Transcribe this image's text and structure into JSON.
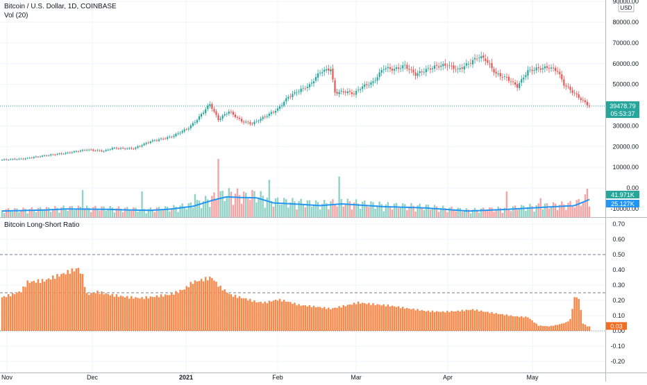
{
  "header": {
    "symbol_title": "Bitcoin / U.S. Dollar, 1D, COINBASE",
    "volume_label": "Vol (20)",
    "currency": "USD",
    "indicator_title": "Bitcoin Long-Short Ratio"
  },
  "badges": {
    "last_price": "39478.79",
    "countdown": "05:53:37",
    "volume_last": "41.971K",
    "volume_ma": "25.127K",
    "ratio_last": "0.03"
  },
  "colors": {
    "up": "#26a69a",
    "down": "#ef5350",
    "vol_up": "#8fd2c6",
    "vol_down": "#f4a4a4",
    "vol_ma": "#2196f3",
    "ratio_bar": "#f7894a",
    "ratio_badge": "#f26d21",
    "price_badge": "#26a69a",
    "ma_badge": "#2196f3",
    "grid": "#f0f3fa",
    "axis_text": "#131722"
  },
  "chart_data": [
    {
      "type": "candlestick",
      "title": "Bitcoin / U.S. Dollar, 1D, COINBASE",
      "x_axis_labels": [
        "Nov",
        "Dec",
        "2021",
        "Feb",
        "Mar",
        "Apr",
        "May"
      ],
      "y_ticks": [
        "-10000.00",
        "0.00",
        "10000.00",
        "20000.00",
        "30000.00",
        "40000.00",
        "50000.00",
        "60000.00",
        "70000.00",
        "80000.00",
        "90000.00"
      ],
      "ylim": [
        -10000,
        92000
      ],
      "last_price": 39478.79,
      "close_path": [
        [
          0,
          13600
        ],
        [
          10,
          14100
        ],
        [
          20,
          15600
        ],
        [
          30,
          16800
        ],
        [
          40,
          18500
        ],
        [
          48,
          17800
        ],
        [
          52,
          19200
        ],
        [
          62,
          19000
        ],
        [
          70,
          22500
        ],
        [
          80,
          24800
        ],
        [
          88,
          29000
        ],
        [
          92,
          33000
        ],
        [
          98,
          40500
        ],
        [
          102,
          33000
        ],
        [
          107,
          37000
        ],
        [
          113,
          32200
        ],
        [
          118,
          31000
        ],
        [
          124,
          34500
        ],
        [
          130,
          38000
        ],
        [
          135,
          44000
        ],
        [
          140,
          47000
        ],
        [
          145,
          49500
        ],
        [
          150,
          56000
        ],
        [
          155,
          57500
        ],
        [
          157,
          46000
        ],
        [
          162,
          46500
        ],
        [
          166,
          45500
        ],
        [
          170,
          49000
        ],
        [
          175,
          51000
        ],
        [
          180,
          58000
        ],
        [
          185,
          57200
        ],
        [
          190,
          59000
        ],
        [
          195,
          54800
        ],
        [
          200,
          57000
        ],
        [
          205,
          58800
        ],
        [
          210,
          59300
        ],
        [
          215,
          57000
        ],
        [
          220,
          60000
        ],
        [
          225,
          63500
        ],
        [
          228,
          62000
        ],
        [
          233,
          55000
        ],
        [
          238,
          53000
        ],
        [
          243,
          49000
        ],
        [
          248,
          56500
        ],
        [
          252,
          57500
        ],
        [
          258,
          58200
        ],
        [
          262,
          56500
        ],
        [
          265,
          50000
        ],
        [
          270,
          45500
        ],
        [
          274,
          42000
        ],
        [
          277,
          39500
        ]
      ]
    },
    {
      "type": "bar",
      "title": "Vol (20)",
      "ylim": [
        -16000,
        150000
      ],
      "baseline": [
        [
          0,
          9000
        ],
        [
          20,
          10500
        ],
        [
          30,
          12000
        ],
        [
          50,
          11500
        ],
        [
          60,
          10500
        ],
        [
          70,
          10000
        ],
        [
          80,
          12000
        ],
        [
          90,
          16000
        ],
        [
          100,
          25500
        ],
        [
          106,
          30000
        ],
        [
          112,
          29000
        ],
        [
          120,
          28500
        ],
        [
          128,
          21000
        ],
        [
          140,
          19000
        ],
        [
          150,
          17000
        ],
        [
          160,
          19500
        ],
        [
          170,
          17500
        ],
        [
          180,
          15500
        ],
        [
          200,
          13500
        ],
        [
          220,
          9000
        ],
        [
          235,
          11000
        ],
        [
          255,
          14500
        ],
        [
          270,
          17000
        ],
        [
          277,
          26000
        ]
      ],
      "spikes": [
        [
          102,
          86000
        ],
        [
          126,
          55000
        ],
        [
          159,
          60000
        ],
        [
          254,
          28000
        ],
        [
          276,
          42000
        ],
        [
          66,
          38000
        ],
        [
          38,
          40000
        ],
        [
          91,
          34000
        ],
        [
          115,
          36000
        ],
        [
          238,
          38000
        ]
      ],
      "last_volume": 41971,
      "moving_average_last": 25127
    },
    {
      "type": "bar",
      "title": "Bitcoin Long-Short Ratio",
      "y_ticks": [
        "-0.20",
        "-0.10",
        "0.00",
        "0.10",
        "0.20",
        "0.30",
        "0.40",
        "0.50",
        "0.60",
        "0.70"
      ],
      "ylim": [
        -0.22,
        0.73
      ],
      "reference_lines": [
        0.5,
        0.25
      ],
      "ratio_path": [
        [
          0,
          0.22
        ],
        [
          5,
          0.24
        ],
        [
          9,
          0.26
        ],
        [
          12,
          0.32
        ],
        [
          20,
          0.33
        ],
        [
          30,
          0.38
        ],
        [
          36,
          0.41
        ],
        [
          38,
          0.36
        ],
        [
          40,
          0.24
        ],
        [
          45,
          0.255
        ],
        [
          52,
          0.235
        ],
        [
          60,
          0.22
        ],
        [
          66,
          0.215
        ],
        [
          72,
          0.225
        ],
        [
          80,
          0.24
        ],
        [
          86,
          0.275
        ],
        [
          90,
          0.32
        ],
        [
          99,
          0.35
        ],
        [
          101,
          0.315
        ],
        [
          103,
          0.285
        ],
        [
          108,
          0.235
        ],
        [
          115,
          0.21
        ],
        [
          120,
          0.19
        ],
        [
          124,
          0.185
        ],
        [
          130,
          0.205
        ],
        [
          134,
          0.195
        ],
        [
          140,
          0.17
        ],
        [
          150,
          0.155
        ],
        [
          155,
          0.145
        ],
        [
          160,
          0.16
        ],
        [
          168,
          0.185
        ],
        [
          175,
          0.175
        ],
        [
          183,
          0.165
        ],
        [
          190,
          0.15
        ],
        [
          200,
          0.13
        ],
        [
          208,
          0.125
        ],
        [
          215,
          0.13
        ],
        [
          222,
          0.14
        ],
        [
          228,
          0.125
        ],
        [
          235,
          0.11
        ],
        [
          242,
          0.095
        ],
        [
          248,
          0.09
        ],
        [
          253,
          0.035
        ],
        [
          258,
          0.03
        ],
        [
          262,
          0.04
        ],
        [
          266,
          0.055
        ],
        [
          268,
          0.075
        ],
        [
          270,
          0.22
        ],
        [
          272,
          0.215
        ],
        [
          274,
          0.05
        ],
        [
          276,
          0.03
        ],
        [
          277,
          0.03
        ]
      ],
      "last_value": 0.03
    }
  ]
}
